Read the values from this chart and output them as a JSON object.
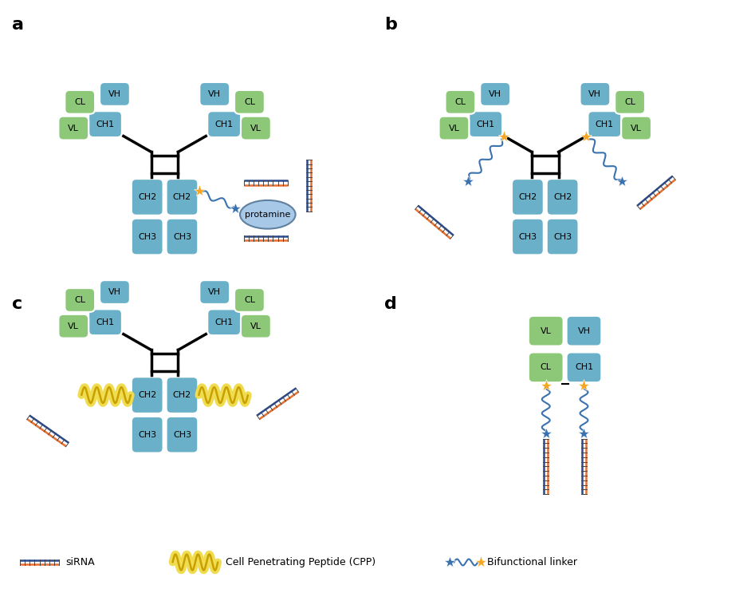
{
  "fig_width": 9.47,
  "fig_height": 7.43,
  "bg_color": "#ffffff",
  "teal_color": "#6ab0c8",
  "green_color": "#8dc878",
  "orange_star": "#f5a623",
  "blue_star": "#3a72b0",
  "blue_wave": "#3a72b0",
  "siRNA_blue": "#2b4a8c",
  "siRNA_orange": "#e87030",
  "protamine_color": "#a8c8e8",
  "CPP_yellow": "#f0dc50",
  "CPP_outline": "#c8a000",
  "panel_labels": [
    "a",
    "b",
    "c",
    "d"
  ],
  "legend_siRNA": "siRNA",
  "legend_CPP": "Cell Penetrating Peptide (CPP)",
  "legend_BFL": "Bifunctional linker"
}
